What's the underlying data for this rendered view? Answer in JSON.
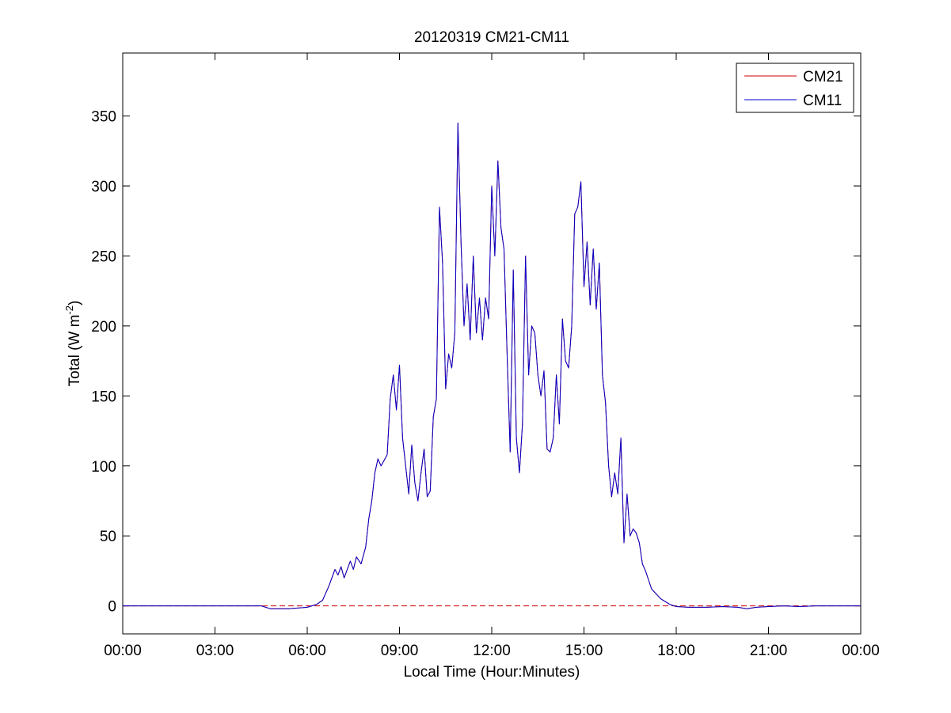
{
  "chart_data": {
    "type": "line",
    "title": "20120319 CM21-CM11",
    "xlabel": "Local Time (Hour:Minutes)",
    "ylabel_main": "Total (W m",
    "ylabel_sup": "-2",
    "ylabel_tail": ")",
    "xlim": [
      0,
      24
    ],
    "ylim": [
      -20,
      395
    ],
    "x_ticks": [
      0,
      3,
      6,
      9,
      12,
      15,
      18,
      21,
      24
    ],
    "x_tick_labels": [
      "00:00",
      "03:00",
      "06:00",
      "09:00",
      "12:00",
      "15:00",
      "18:00",
      "21:00",
      "00:00"
    ],
    "y_ticks": [
      0,
      50,
      100,
      150,
      200,
      250,
      300,
      350
    ],
    "y_tick_labels": [
      "0",
      "50",
      "100",
      "150",
      "200",
      "250",
      "300",
      "350"
    ],
    "legend_position": "top-right",
    "reference_line": {
      "y": 0,
      "color": "#cc0000",
      "style": "dashed"
    },
    "series": [
      {
        "name": "CM21",
        "color": "#cc0000",
        "points": [
          [
            0,
            0
          ],
          [
            4.5,
            0
          ],
          [
            4.8,
            -2
          ],
          [
            5.4,
            -2
          ],
          [
            6.0,
            -1
          ],
          [
            6.3,
            1
          ],
          [
            6.5,
            4
          ],
          [
            6.7,
            14
          ],
          [
            6.9,
            26
          ],
          [
            7.0,
            22
          ],
          [
            7.1,
            28
          ],
          [
            7.2,
            20
          ],
          [
            7.4,
            32
          ],
          [
            7.5,
            26
          ],
          [
            7.6,
            35
          ],
          [
            7.75,
            30
          ],
          [
            7.9,
            42
          ],
          [
            8.0,
            62
          ],
          [
            8.1,
            75
          ],
          [
            8.2,
            95
          ],
          [
            8.3,
            105
          ],
          [
            8.4,
            100
          ],
          [
            8.6,
            108
          ],
          [
            8.7,
            148
          ],
          [
            8.8,
            165
          ],
          [
            8.9,
            140
          ],
          [
            9.0,
            172
          ],
          [
            9.1,
            120
          ],
          [
            9.2,
            100
          ],
          [
            9.3,
            80
          ],
          [
            9.4,
            115
          ],
          [
            9.5,
            88
          ],
          [
            9.6,
            75
          ],
          [
            9.7,
            95
          ],
          [
            9.8,
            112
          ],
          [
            9.9,
            78
          ],
          [
            10.0,
            82
          ],
          [
            10.1,
            135
          ],
          [
            10.2,
            148
          ],
          [
            10.3,
            285
          ],
          [
            10.4,
            245
          ],
          [
            10.5,
            155
          ],
          [
            10.6,
            180
          ],
          [
            10.7,
            170
          ],
          [
            10.8,
            195
          ],
          [
            10.9,
            345
          ],
          [
            11.0,
            260
          ],
          [
            11.1,
            200
          ],
          [
            11.2,
            230
          ],
          [
            11.3,
            190
          ],
          [
            11.4,
            250
          ],
          [
            11.5,
            195
          ],
          [
            11.6,
            220
          ],
          [
            11.7,
            190
          ],
          [
            11.8,
            220
          ],
          [
            11.9,
            205
          ],
          [
            12.0,
            300
          ],
          [
            12.1,
            250
          ],
          [
            12.2,
            318
          ],
          [
            12.3,
            270
          ],
          [
            12.4,
            255
          ],
          [
            12.5,
            180
          ],
          [
            12.6,
            110
          ],
          [
            12.7,
            240
          ],
          [
            12.8,
            120
          ],
          [
            12.9,
            95
          ],
          [
            13.0,
            130
          ],
          [
            13.1,
            250
          ],
          [
            13.2,
            165
          ],
          [
            13.3,
            200
          ],
          [
            13.4,
            195
          ],
          [
            13.5,
            165
          ],
          [
            13.6,
            150
          ],
          [
            13.7,
            168
          ],
          [
            13.8,
            112
          ],
          [
            13.9,
            110
          ],
          [
            14.0,
            120
          ],
          [
            14.1,
            165
          ],
          [
            14.2,
            130
          ],
          [
            14.3,
            205
          ],
          [
            14.4,
            175
          ],
          [
            14.5,
            170
          ],
          [
            14.6,
            200
          ],
          [
            14.7,
            280
          ],
          [
            14.8,
            285
          ],
          [
            14.9,
            303
          ],
          [
            15.0,
            228
          ],
          [
            15.1,
            260
          ],
          [
            15.2,
            215
          ],
          [
            15.3,
            255
          ],
          [
            15.4,
            212
          ],
          [
            15.5,
            245
          ],
          [
            15.6,
            165
          ],
          [
            15.7,
            145
          ],
          [
            15.8,
            100
          ],
          [
            15.9,
            78
          ],
          [
            16.0,
            95
          ],
          [
            16.1,
            80
          ],
          [
            16.2,
            120
          ],
          [
            16.3,
            45
          ],
          [
            16.4,
            80
          ],
          [
            16.5,
            50
          ],
          [
            16.6,
            55
          ],
          [
            16.7,
            52
          ],
          [
            16.8,
            45
          ],
          [
            16.9,
            30
          ],
          [
            17.0,
            25
          ],
          [
            17.2,
            12
          ],
          [
            17.5,
            5
          ],
          [
            17.8,
            1
          ],
          [
            18.0,
            -0.5
          ],
          [
            18.4,
            -1
          ],
          [
            19.0,
            -1
          ],
          [
            19.5,
            -0.5
          ],
          [
            20.0,
            -1
          ],
          [
            20.3,
            -2
          ],
          [
            20.6,
            -1
          ],
          [
            21.0,
            -0.5
          ],
          [
            21.5,
            0
          ],
          [
            22.0,
            -0.5
          ],
          [
            22.5,
            0
          ],
          [
            23.0,
            0
          ],
          [
            23.5,
            0
          ],
          [
            24,
            0
          ]
        ]
      },
      {
        "name": "CM11",
        "color": "#0000cc",
        "points": [
          [
            0,
            0
          ],
          [
            4.5,
            0
          ],
          [
            4.8,
            -2
          ],
          [
            5.4,
            -2
          ],
          [
            6.0,
            -1
          ],
          [
            6.3,
            1
          ],
          [
            6.5,
            4
          ],
          [
            6.7,
            14
          ],
          [
            6.9,
            26
          ],
          [
            7.0,
            22
          ],
          [
            7.1,
            28
          ],
          [
            7.2,
            20
          ],
          [
            7.4,
            32
          ],
          [
            7.5,
            26
          ],
          [
            7.6,
            35
          ],
          [
            7.75,
            30
          ],
          [
            7.9,
            42
          ],
          [
            8.0,
            62
          ],
          [
            8.1,
            75
          ],
          [
            8.2,
            95
          ],
          [
            8.3,
            105
          ],
          [
            8.4,
            100
          ],
          [
            8.6,
            108
          ],
          [
            8.7,
            148
          ],
          [
            8.8,
            165
          ],
          [
            8.9,
            140
          ],
          [
            9.0,
            172
          ],
          [
            9.1,
            120
          ],
          [
            9.2,
            100
          ],
          [
            9.3,
            80
          ],
          [
            9.4,
            115
          ],
          [
            9.5,
            88
          ],
          [
            9.6,
            75
          ],
          [
            9.7,
            95
          ],
          [
            9.8,
            112
          ],
          [
            9.9,
            78
          ],
          [
            10.0,
            82
          ],
          [
            10.1,
            135
          ],
          [
            10.2,
            148
          ],
          [
            10.3,
            285
          ],
          [
            10.4,
            245
          ],
          [
            10.5,
            155
          ],
          [
            10.6,
            180
          ],
          [
            10.7,
            170
          ],
          [
            10.8,
            195
          ],
          [
            10.9,
            345
          ],
          [
            11.0,
            260
          ],
          [
            11.1,
            200
          ],
          [
            11.2,
            230
          ],
          [
            11.3,
            190
          ],
          [
            11.4,
            250
          ],
          [
            11.5,
            195
          ],
          [
            11.6,
            220
          ],
          [
            11.7,
            190
          ],
          [
            11.8,
            220
          ],
          [
            11.9,
            205
          ],
          [
            12.0,
            300
          ],
          [
            12.1,
            250
          ],
          [
            12.2,
            318
          ],
          [
            12.3,
            270
          ],
          [
            12.4,
            255
          ],
          [
            12.5,
            180
          ],
          [
            12.6,
            110
          ],
          [
            12.7,
            240
          ],
          [
            12.8,
            120
          ],
          [
            12.9,
            95
          ],
          [
            13.0,
            130
          ],
          [
            13.1,
            250
          ],
          [
            13.2,
            165
          ],
          [
            13.3,
            200
          ],
          [
            13.4,
            195
          ],
          [
            13.5,
            165
          ],
          [
            13.6,
            150
          ],
          [
            13.7,
            168
          ],
          [
            13.8,
            112
          ],
          [
            13.9,
            110
          ],
          [
            14.0,
            120
          ],
          [
            14.1,
            165
          ],
          [
            14.2,
            130
          ],
          [
            14.3,
            205
          ],
          [
            14.4,
            175
          ],
          [
            14.5,
            170
          ],
          [
            14.6,
            200
          ],
          [
            14.7,
            280
          ],
          [
            14.8,
            285
          ],
          [
            14.9,
            303
          ],
          [
            15.0,
            228
          ],
          [
            15.1,
            260
          ],
          [
            15.2,
            215
          ],
          [
            15.3,
            255
          ],
          [
            15.4,
            212
          ],
          [
            15.5,
            245
          ],
          [
            15.6,
            165
          ],
          [
            15.7,
            145
          ],
          [
            15.8,
            100
          ],
          [
            15.9,
            78
          ],
          [
            16.0,
            95
          ],
          [
            16.1,
            80
          ],
          [
            16.2,
            120
          ],
          [
            16.3,
            45
          ],
          [
            16.4,
            80
          ],
          [
            16.5,
            50
          ],
          [
            16.6,
            55
          ],
          [
            16.7,
            52
          ],
          [
            16.8,
            45
          ],
          [
            16.9,
            30
          ],
          [
            17.0,
            25
          ],
          [
            17.2,
            12
          ],
          [
            17.5,
            5
          ],
          [
            17.8,
            1
          ],
          [
            18.0,
            -0.5
          ],
          [
            18.4,
            -1
          ],
          [
            19.0,
            -1
          ],
          [
            19.5,
            -0.5
          ],
          [
            20.0,
            -1
          ],
          [
            20.3,
            -2
          ],
          [
            20.6,
            -1
          ],
          [
            21.0,
            -0.5
          ],
          [
            21.5,
            0
          ],
          [
            22.0,
            -0.5
          ],
          [
            22.5,
            0
          ],
          [
            23.0,
            0
          ],
          [
            23.5,
            0
          ],
          [
            24,
            0
          ]
        ]
      }
    ]
  }
}
